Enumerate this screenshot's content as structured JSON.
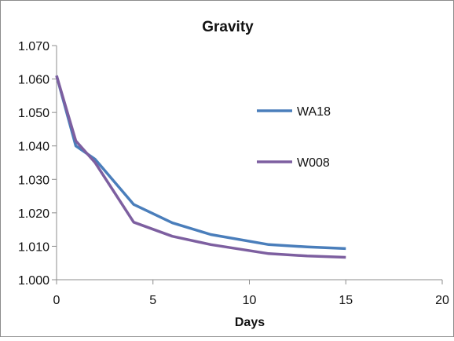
{
  "chart_data": {
    "type": "line",
    "title": "Gravity",
    "xlabel": "Days",
    "ylabel": "",
    "xlim": [
      0,
      20
    ],
    "ylim": [
      1.0,
      1.07
    ],
    "x_ticks": [
      "0",
      "5",
      "10",
      "15",
      "20"
    ],
    "y_ticks": [
      "1.000",
      "1.010",
      "1.020",
      "1.030",
      "1.040",
      "1.050",
      "1.060",
      "1.070"
    ],
    "grid": false,
    "legend_position": "right",
    "series": [
      {
        "name": "WA18",
        "color": "#4a7ebb",
        "x": [
          0,
          1,
          2,
          4,
          6,
          8,
          11,
          13,
          15
        ],
        "y": [
          1.061,
          1.04,
          1.036,
          1.0225,
          1.017,
          1.0135,
          1.0105,
          1.0098,
          1.0093
        ]
      },
      {
        "name": "W008",
        "color": "#7d5fa0",
        "x": [
          0,
          1,
          2,
          4,
          6,
          8,
          11,
          13,
          15
        ],
        "y": [
          1.061,
          1.0415,
          1.035,
          1.0172,
          1.013,
          1.0105,
          1.0078,
          1.0071,
          1.0067
        ]
      }
    ]
  }
}
